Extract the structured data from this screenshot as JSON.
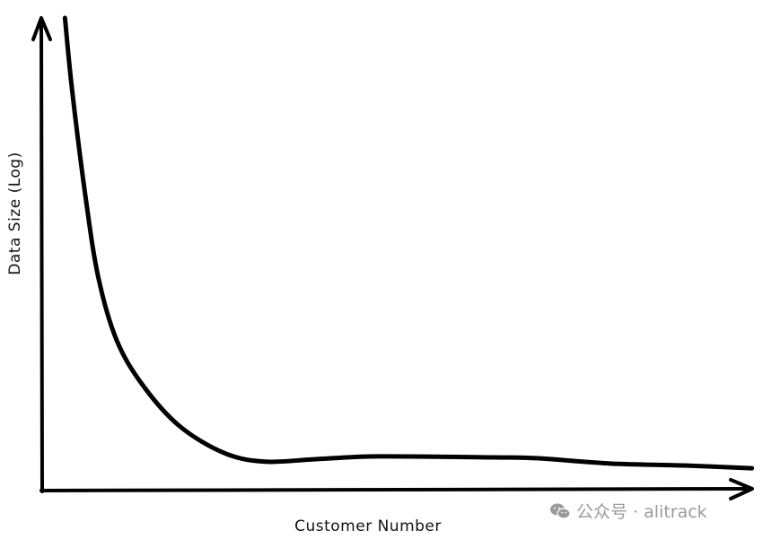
{
  "chart_data": {
    "type": "line",
    "style": "hand-drawn sketch",
    "title": "",
    "xlabel": "Customer Number",
    "ylabel": "Data Size (Log)",
    "y_scale": "log",
    "ticks": "none",
    "grid": false,
    "legend": "none",
    "xlim": [
      0,
      100
    ],
    "ylim": [
      0,
      100
    ],
    "series": [
      {
        "x": [
          3.2,
          4.2,
          6.1,
          7.9,
          10.5,
          14.2,
          19.3,
          25.6,
          31.3,
          38.2,
          47.0,
          63.4,
          69.7,
          79.8,
          89.9,
          99.7
        ],
        "y": [
          100,
          84.8,
          62.1,
          45.1,
          31.8,
          22.3,
          13.8,
          8.1,
          6.3,
          6.8,
          7.4,
          7.2,
          7.0,
          5.9,
          5.5,
          4.9
        ],
        "color": "#000000"
      }
    ]
  },
  "watermark": {
    "icon": "wechat-icon",
    "text": "公众号 · alitrack",
    "color": "#9a9a9a"
  }
}
